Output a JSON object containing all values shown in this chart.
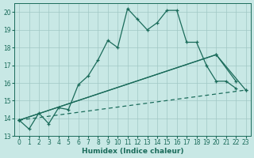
{
  "bg_color": "#c8e8e5",
  "grid_color": "#a0c8c5",
  "line_color": "#1a6b5a",
  "xlabel": "Humidex (Indice chaleur)",
  "xlim": [
    -0.5,
    23.5
  ],
  "ylim": [
    13,
    20.5
  ],
  "yticks": [
    13,
    14,
    15,
    16,
    17,
    18,
    19,
    20
  ],
  "xticks": [
    0,
    1,
    2,
    3,
    4,
    5,
    6,
    7,
    8,
    9,
    10,
    11,
    12,
    13,
    14,
    15,
    16,
    17,
    18,
    19,
    20,
    21,
    22,
    23
  ],
  "series1_x": [
    0,
    1,
    2,
    3,
    4,
    5,
    6,
    7,
    8,
    9,
    10,
    11,
    12,
    13,
    14,
    15,
    16,
    17,
    18,
    19,
    20,
    21,
    22
  ],
  "series1_y": [
    13.9,
    13.4,
    14.3,
    13.7,
    14.6,
    14.5,
    15.9,
    16.4,
    17.3,
    18.4,
    18.0,
    20.2,
    19.6,
    19.0,
    19.4,
    20.1,
    20.1,
    18.3,
    18.3,
    17.0,
    16.1,
    16.1,
    15.7
  ],
  "series2_x": [
    0,
    23
  ],
  "series2_y": [
    13.9,
    15.6
  ],
  "series3_x": [
    0,
    20,
    22
  ],
  "series3_y": [
    13.9,
    17.6,
    16.1
  ],
  "series4_x": [
    0,
    20,
    23
  ],
  "series4_y": [
    13.9,
    17.6,
    15.6
  ]
}
